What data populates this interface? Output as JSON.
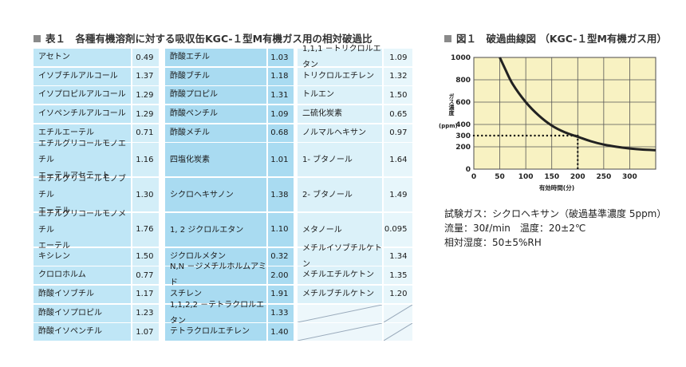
{
  "table": {
    "heading": "表１　各種有機溶剤に対する吸収缶KGC-１型M有機ガス用の相対破過比",
    "columns": [
      {
        "rows": [
          {
            "name": [
              "アセトン"
            ],
            "value": "0.49"
          },
          {
            "name": [
              "イソブチルアルコール"
            ],
            "value": "1.37"
          },
          {
            "name": [
              "イソプロピルアルコール"
            ],
            "value": "1.29"
          },
          {
            "name": [
              "イソペンチルアルコール"
            ],
            "value": "1.29"
          },
          {
            "name": [
              "エチルエーテル"
            ],
            "value": "0.71"
          },
          {
            "name": [
              "エチルグリコールモノエチル",
              "エーテルアセテート"
            ],
            "value": "1.16"
          },
          {
            "name": [
              "エチルグリコールモノブチル",
              "エーテル"
            ],
            "value": "1.30"
          },
          {
            "name": [
              "エチルグリコールモノメチル",
              "エーテル"
            ],
            "value": "1.76"
          },
          {
            "name": [
              "キシレン"
            ],
            "value": "1.50"
          },
          {
            "name": [
              "クロロホルム"
            ],
            "value": "0.77"
          },
          {
            "name": [
              "酢酸イソブチル"
            ],
            "value": "1.17"
          },
          {
            "name": [
              "酢酸イソプロピル"
            ],
            "value": "1.23"
          },
          {
            "name": [
              "酢酸イソペンチル"
            ],
            "value": "1.07"
          }
        ]
      },
      {
        "rows": [
          {
            "name": [
              "酢酸エチル"
            ],
            "value": "1.03"
          },
          {
            "name": [
              "酢酸ブチル"
            ],
            "value": "1.18"
          },
          {
            "name": [
              "酢酸プロピル"
            ],
            "value": "1.31"
          },
          {
            "name": [
              "酢酸ペンチル"
            ],
            "value": "1.09"
          },
          {
            "name": [
              "酢酸メチル"
            ],
            "value": "0.68"
          },
          {
            "name": [
              "四塩化炭素"
            ],
            "value": "1.01"
          },
          {
            "name": [
              "シクロヘキサノン"
            ],
            "value": "1.38"
          },
          {
            "name": [
              "1, 2 ジクロルエタン"
            ],
            "value": "1.10"
          },
          {
            "name": [
              "ジクロルメタン"
            ],
            "value": "0.32"
          },
          {
            "name": [
              "N,N －ジメチルホルムアミド"
            ],
            "value": "2.00"
          },
          {
            "name": [
              "スチレン"
            ],
            "value": "1.91"
          },
          {
            "name": [
              "1,1,2,2 －テトラクロルエタン"
            ],
            "value": "1.33"
          },
          {
            "name": [
              "テトラクロルエチレン"
            ],
            "value": "1.40"
          }
        ]
      },
      {
        "rows": [
          {
            "name": [
              "1,1,1 －トリクロルエタン"
            ],
            "value": "1.09"
          },
          {
            "name": [
              "トリクロルエチレン"
            ],
            "value": "1.32"
          },
          {
            "name": [
              "トルエン"
            ],
            "value": "1.50"
          },
          {
            "name": [
              "二硫化炭素"
            ],
            "value": "0.65"
          },
          {
            "name": [
              "ノルマルヘキサン"
            ],
            "value": "0.97"
          },
          {
            "name": [
              "1- ブタノール"
            ],
            "value": "1.64"
          },
          {
            "name": [
              "2- ブタノール"
            ],
            "value": "1.49"
          },
          {
            "name": [
              "メタノール"
            ],
            "value": "0.095"
          },
          {
            "name": [
              "メチルイソブチルケトン"
            ],
            "value": "1.34"
          },
          {
            "name": [
              "メチルエチルケトン"
            ],
            "value": "1.35"
          },
          {
            "name": [
              "メチルブチルケトン"
            ],
            "value": "1.20"
          },
          {
            "name": [
              ""
            ],
            "value": ""
          },
          {
            "name": [
              ""
            ],
            "value": ""
          }
        ]
      }
    ]
  },
  "figure": {
    "heading": "図１　破過曲線図 （KGC-１型M有機ガス用）",
    "info": [
      "試験ガス：シクロヘキサン（破過基準濃度 5ppm）",
      "流量：30ℓ/min　温度：20±2℃",
      "相対湿度：50±5%RH"
    ]
  },
  "chart_data": {
    "type": "line",
    "xlabel": "有効時間(分)",
    "ylabel_lines": [
      "ガス濃度",
      "(ppm)"
    ],
    "xlim": [
      0,
      350
    ],
    "ylim": [
      0,
      1000
    ],
    "xticks": [
      0,
      50,
      100,
      150,
      200,
      250,
      300
    ],
    "yticks": [
      0,
      200,
      300,
      400,
      600,
      800,
      1000
    ],
    "x": [
      50,
      60,
      75,
      100,
      125,
      150,
      175,
      200,
      225,
      250,
      275,
      300,
      325,
      350
    ],
    "y": [
      1000,
      900,
      760,
      600,
      480,
      390,
      330,
      290,
      250,
      220,
      200,
      185,
      175,
      170
    ],
    "annotation": {
      "x": 200,
      "y": 300
    },
    "background": "#f8f2c2",
    "grid": true
  }
}
